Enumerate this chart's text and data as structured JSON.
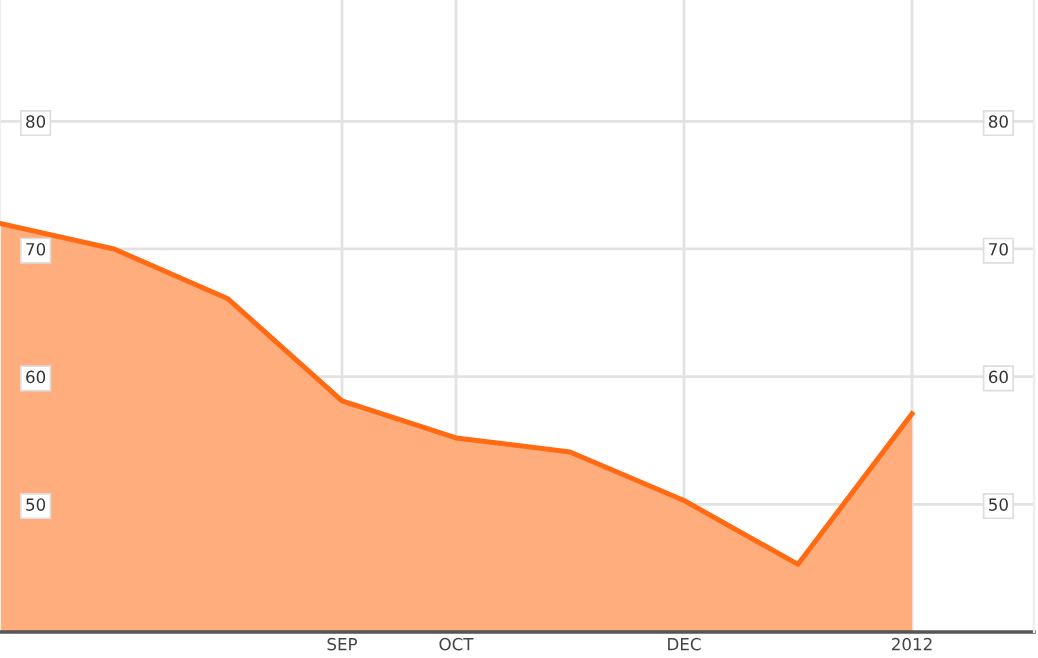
{
  "chart_data": {
    "type": "area",
    "categories": [
      null,
      null,
      null,
      "SEP",
      "OCT",
      null,
      "DEC",
      null,
      "2012"
    ],
    "series": [
      {
        "color": "#ff6a13",
        "values": [
          72.0,
          70.0,
          66.1,
          58.1,
          55.2,
          54.1,
          50.3,
          45.3,
          57.1
        ]
      }
    ],
    "ylim": [
      40,
      89.5
    ],
    "yticks": [
      50,
      60,
      70,
      80
    ],
    "y2lim": [
      40,
      89.5
    ],
    "y2ticks": [
      50,
      60,
      70,
      80
    ],
    "grid": true
  }
}
